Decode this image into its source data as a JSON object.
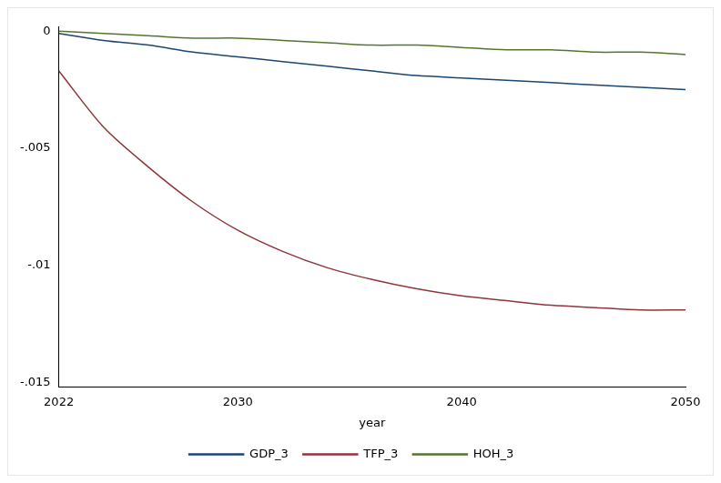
{
  "chart_data": {
    "type": "line",
    "x_label": "year",
    "x": [
      2022,
      2024,
      2026,
      2028,
      2030,
      2032,
      2034,
      2036,
      2038,
      2040,
      2042,
      2044,
      2046,
      2048,
      2050
    ],
    "series": [
      {
        "name": "GDP_3",
        "color": "#1a476f",
        "values": [
          -0.0001,
          -0.0004,
          -0.0006,
          -0.0009,
          -0.0011,
          -0.0013,
          -0.0015,
          -0.0017,
          -0.0019,
          -0.002,
          -0.0021,
          -0.0022,
          -0.0023,
          -0.0024,
          -0.0025
        ]
      },
      {
        "name": "TFP_3",
        "color": "#90353b",
        "values": [
          -0.0017,
          -0.0041,
          -0.0058,
          -0.0073,
          -0.0085,
          -0.0094,
          -0.0101,
          -0.0106,
          -0.011,
          -0.0113,
          -0.0115,
          -0.0117,
          -0.0118,
          -0.0119,
          -0.0119
        ]
      },
      {
        "name": "HOH_3",
        "color": "#55752f",
        "values": [
          0,
          -0.0001,
          -0.0002,
          -0.0003,
          -0.0003,
          -0.0004,
          -0.0005,
          -0.0006,
          -0.0006,
          -0.0007,
          -0.0008,
          -0.0008,
          -0.0009,
          -0.0009,
          -0.001
        ]
      }
    ],
    "xlim": [
      2022,
      2050
    ],
    "xticks": [
      2022,
      2030,
      2040,
      2050
    ],
    "ylim": [
      -0.0152,
      0.0002
    ],
    "yticks": [
      0,
      {
        "value": -0.005,
        "label": "-.005"
      },
      {
        "value": -0.01,
        "label": "-.01"
      },
      {
        "value": -0.015,
        "label": "-.015"
      }
    ],
    "grid": false,
    "legend": "bottom"
  }
}
